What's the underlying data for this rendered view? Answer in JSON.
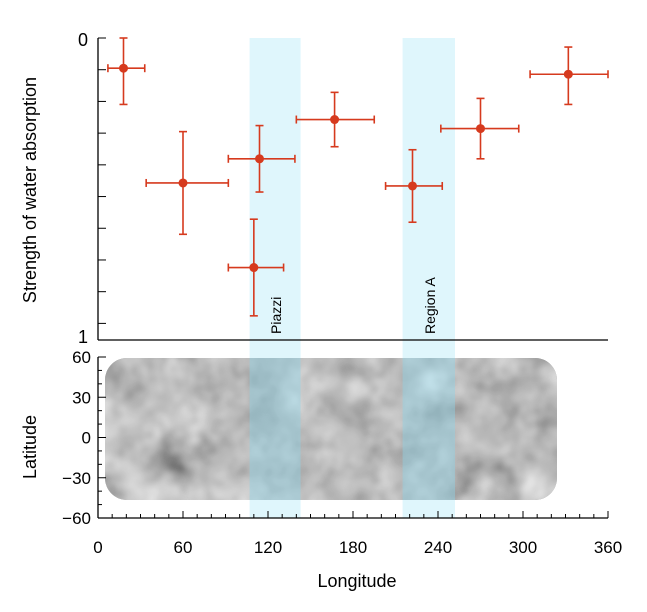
{
  "colors": {
    "points": "#d63a1e",
    "band": "#dff6fc",
    "band_overlay": "#8fd3e6",
    "axis": "#000000"
  },
  "chart_data": [
    {
      "type": "scatter",
      "ylabel": "Strength of water absorption",
      "xlim": [
        0,
        360
      ],
      "ylim": [
        0,
        1
      ],
      "y_inverted": true,
      "yticks": [
        "0",
        "1"
      ],
      "grid": false,
      "bands": [
        {
          "label": "Piazzi",
          "x_range": [
            107,
            143
          ]
        },
        {
          "label": "Region A",
          "x_range": [
            215,
            252
          ]
        }
      ],
      "points": [
        {
          "x": 18,
          "y": 0.1,
          "x_range": [
            7,
            33
          ],
          "y_range": [
            0.0,
            0.22
          ]
        },
        {
          "x": 60,
          "y": 0.48,
          "x_range": [
            34,
            92
          ],
          "y_range": [
            0.31,
            0.65
          ]
        },
        {
          "x": 114,
          "y": 0.4,
          "x_range": [
            92,
            139
          ],
          "y_range": [
            0.29,
            0.51
          ]
        },
        {
          "x": 110,
          "y": 0.76,
          "x_range": [
            92,
            131
          ],
          "y_range": [
            0.6,
            0.92
          ]
        },
        {
          "x": 167,
          "y": 0.27,
          "x_range": [
            140,
            195
          ],
          "y_range": [
            0.18,
            0.36
          ]
        },
        {
          "x": 222,
          "y": 0.49,
          "x_range": [
            203,
            243
          ],
          "y_range": [
            0.37,
            0.61
          ]
        },
        {
          "x": 270,
          "y": 0.3,
          "x_range": [
            242,
            297
          ],
          "y_range": [
            0.2,
            0.4
          ]
        },
        {
          "x": 332,
          "y": 0.12,
          "x_range": [
            305,
            360
          ],
          "y_range": [
            0.03,
            0.22
          ]
        }
      ]
    },
    {
      "type": "heatmap",
      "xlabel": "Longitude",
      "ylabel": "Latitude",
      "xlim": [
        0,
        360
      ],
      "ylim": [
        -60,
        60
      ],
      "xticks": [
        "0",
        "60",
        "120",
        "180",
        "240",
        "300",
        "360"
      ],
      "yticks": [
        "60",
        "30",
        "0",
        "−30",
        "−60"
      ],
      "colormap": "grayscale",
      "coverage": {
        "lon_range": [
          5,
          325
        ],
        "lat_range": [
          -45,
          57
        ]
      }
    }
  ]
}
